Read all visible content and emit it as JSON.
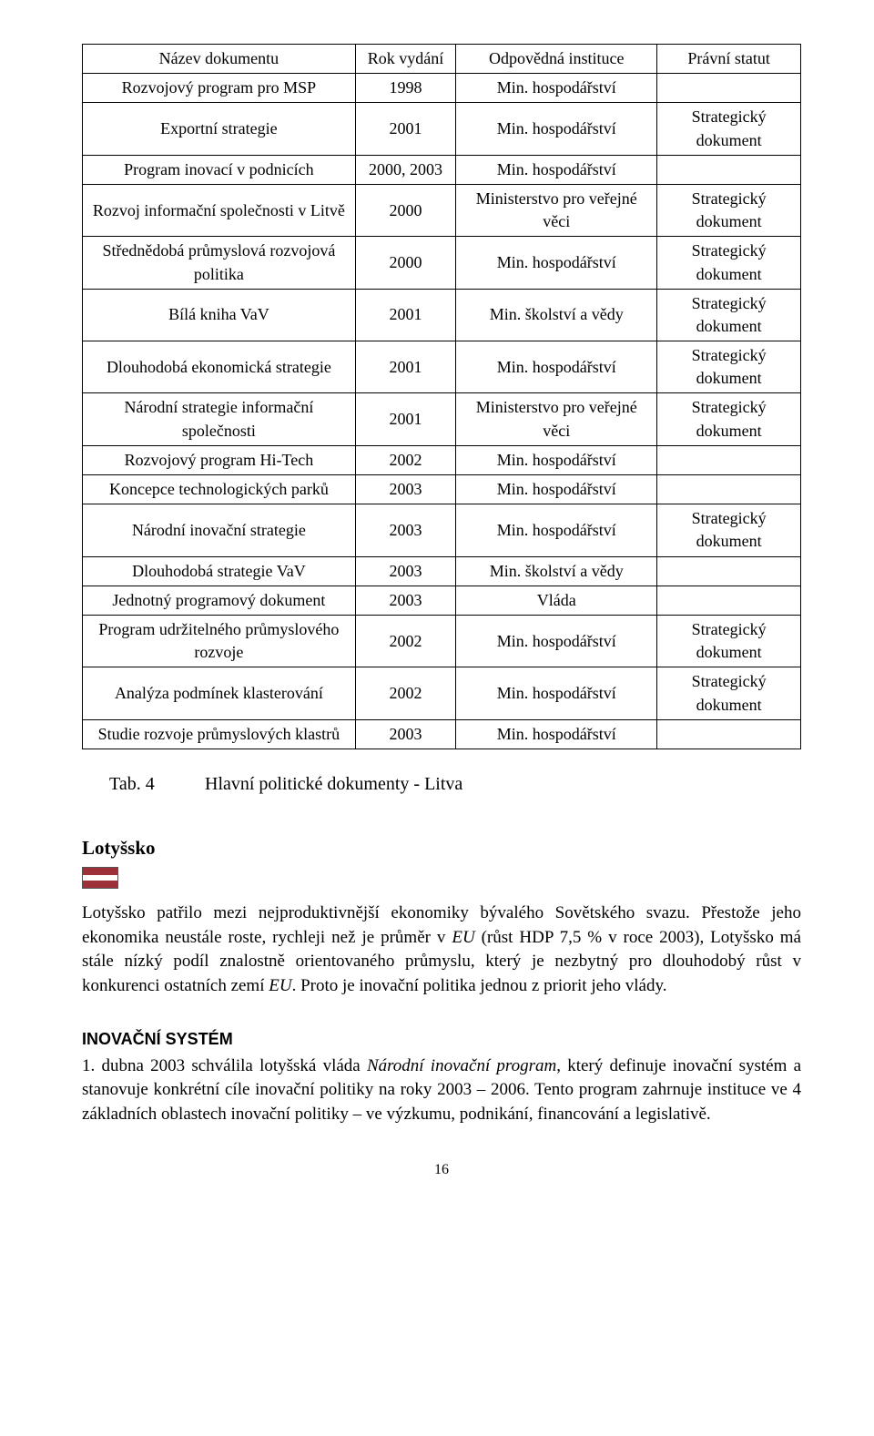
{
  "table": {
    "headers": [
      "Název dokumentu",
      "Rok vydání",
      "Odpovědná instituce",
      "Právní statut"
    ],
    "rows": [
      {
        "name": "Rozvojový program pro MSP",
        "year": "1998",
        "inst": "Min. hospodářství",
        "status": ""
      },
      {
        "name": "Exportní strategie",
        "year": "2001",
        "inst": "Min. hospodářství",
        "status": "Strategický dokument"
      },
      {
        "name": "Program inovací v podnicích",
        "year": "2000, 2003",
        "inst": "Min. hospodářství",
        "status": ""
      },
      {
        "name": "Rozvoj informační společnosti v Litvě",
        "year": "2000",
        "inst": "Ministerstvo pro veřejné věci",
        "status": "Strategický dokument"
      },
      {
        "name": "Střednědobá průmyslová rozvojová politika",
        "year": "2000",
        "inst": "Min. hospodářství",
        "status": "Strategický dokument"
      },
      {
        "name": "Bílá kniha VaV",
        "year": "2001",
        "inst": "Min. školství a vědy",
        "status": "Strategický dokument"
      },
      {
        "name": "Dlouhodobá ekonomická strategie",
        "year": "2001",
        "inst": "Min. hospodářství",
        "status": "Strategický dokument"
      },
      {
        "name": "Národní strategie informační společnosti",
        "year": "2001",
        "inst": "Ministerstvo pro veřejné věci",
        "status": "Strategický dokument"
      },
      {
        "name": "Rozvojový program Hi-Tech",
        "year": "2002",
        "inst": "Min. hospodářství",
        "status": ""
      },
      {
        "name": "Koncepce technologických parků",
        "year": "2003",
        "inst": "Min. hospodářství",
        "status": ""
      },
      {
        "name": "Národní inovační strategie",
        "year": "2003",
        "inst": "Min. hospodářství",
        "status": "Strategický dokument"
      },
      {
        "name": "Dlouhodobá strategie  VaV",
        "year": "2003",
        "inst": "Min. školství a vědy",
        "status": ""
      },
      {
        "name": "Jednotný programový dokument",
        "year": "2003",
        "inst": "Vláda",
        "status": ""
      },
      {
        "name": "Program udržitelného průmyslového rozvoje",
        "year": "2002",
        "inst": "Min. hospodářství",
        "status": "Strategický dokument"
      },
      {
        "name": "Analýza podmínek klasterování",
        "year": "2002",
        "inst": "Min. hospodářství",
        "status": "Strategický dokument"
      },
      {
        "name": "Studie rozvoje průmyslových klastrů",
        "year": "2003",
        "inst": "Min. hospodářství",
        "status": ""
      }
    ]
  },
  "caption": {
    "label": "Tab. 4",
    "text": "Hlavní politické dokumenty - Litva"
  },
  "section_heading": "Lotyšsko",
  "paragraph1_pre": "Lotyšsko patřilo mezi nejproduktivnější ekonomiky bývalého Sovětského svazu. Přestože jeho ekonomika neustále roste, rychleji než je průměr v ",
  "paragraph1_em1": "EU",
  "paragraph1_mid": " (růst HDP 7,5 % v roce 2003), Lotyšsko má stále nízký podíl znalostně orientovaného průmyslu, který je nezbytný pro dlouhodobý růst v konkurenci ostatních zemí ",
  "paragraph1_em2": "EU",
  "paragraph1_end": ". Proto je inovační politika jednou z priorit jeho vlády.",
  "subhead": "INOVAČNÍ SYSTÉM",
  "paragraph2_pre": "1. dubna 2003 schválila lotyšská vláda ",
  "paragraph2_em": "Národní inovační program",
  "paragraph2_post": ", který definuje inovační systém a stanovuje konkrétní cíle inovační politiky na roky 2003 – 2006. Tento program zahrnuje instituce ve 4 základních oblastech inovační politiky – ve výzkumu, podnikání, financování a legislativě.",
  "page_number": "16"
}
